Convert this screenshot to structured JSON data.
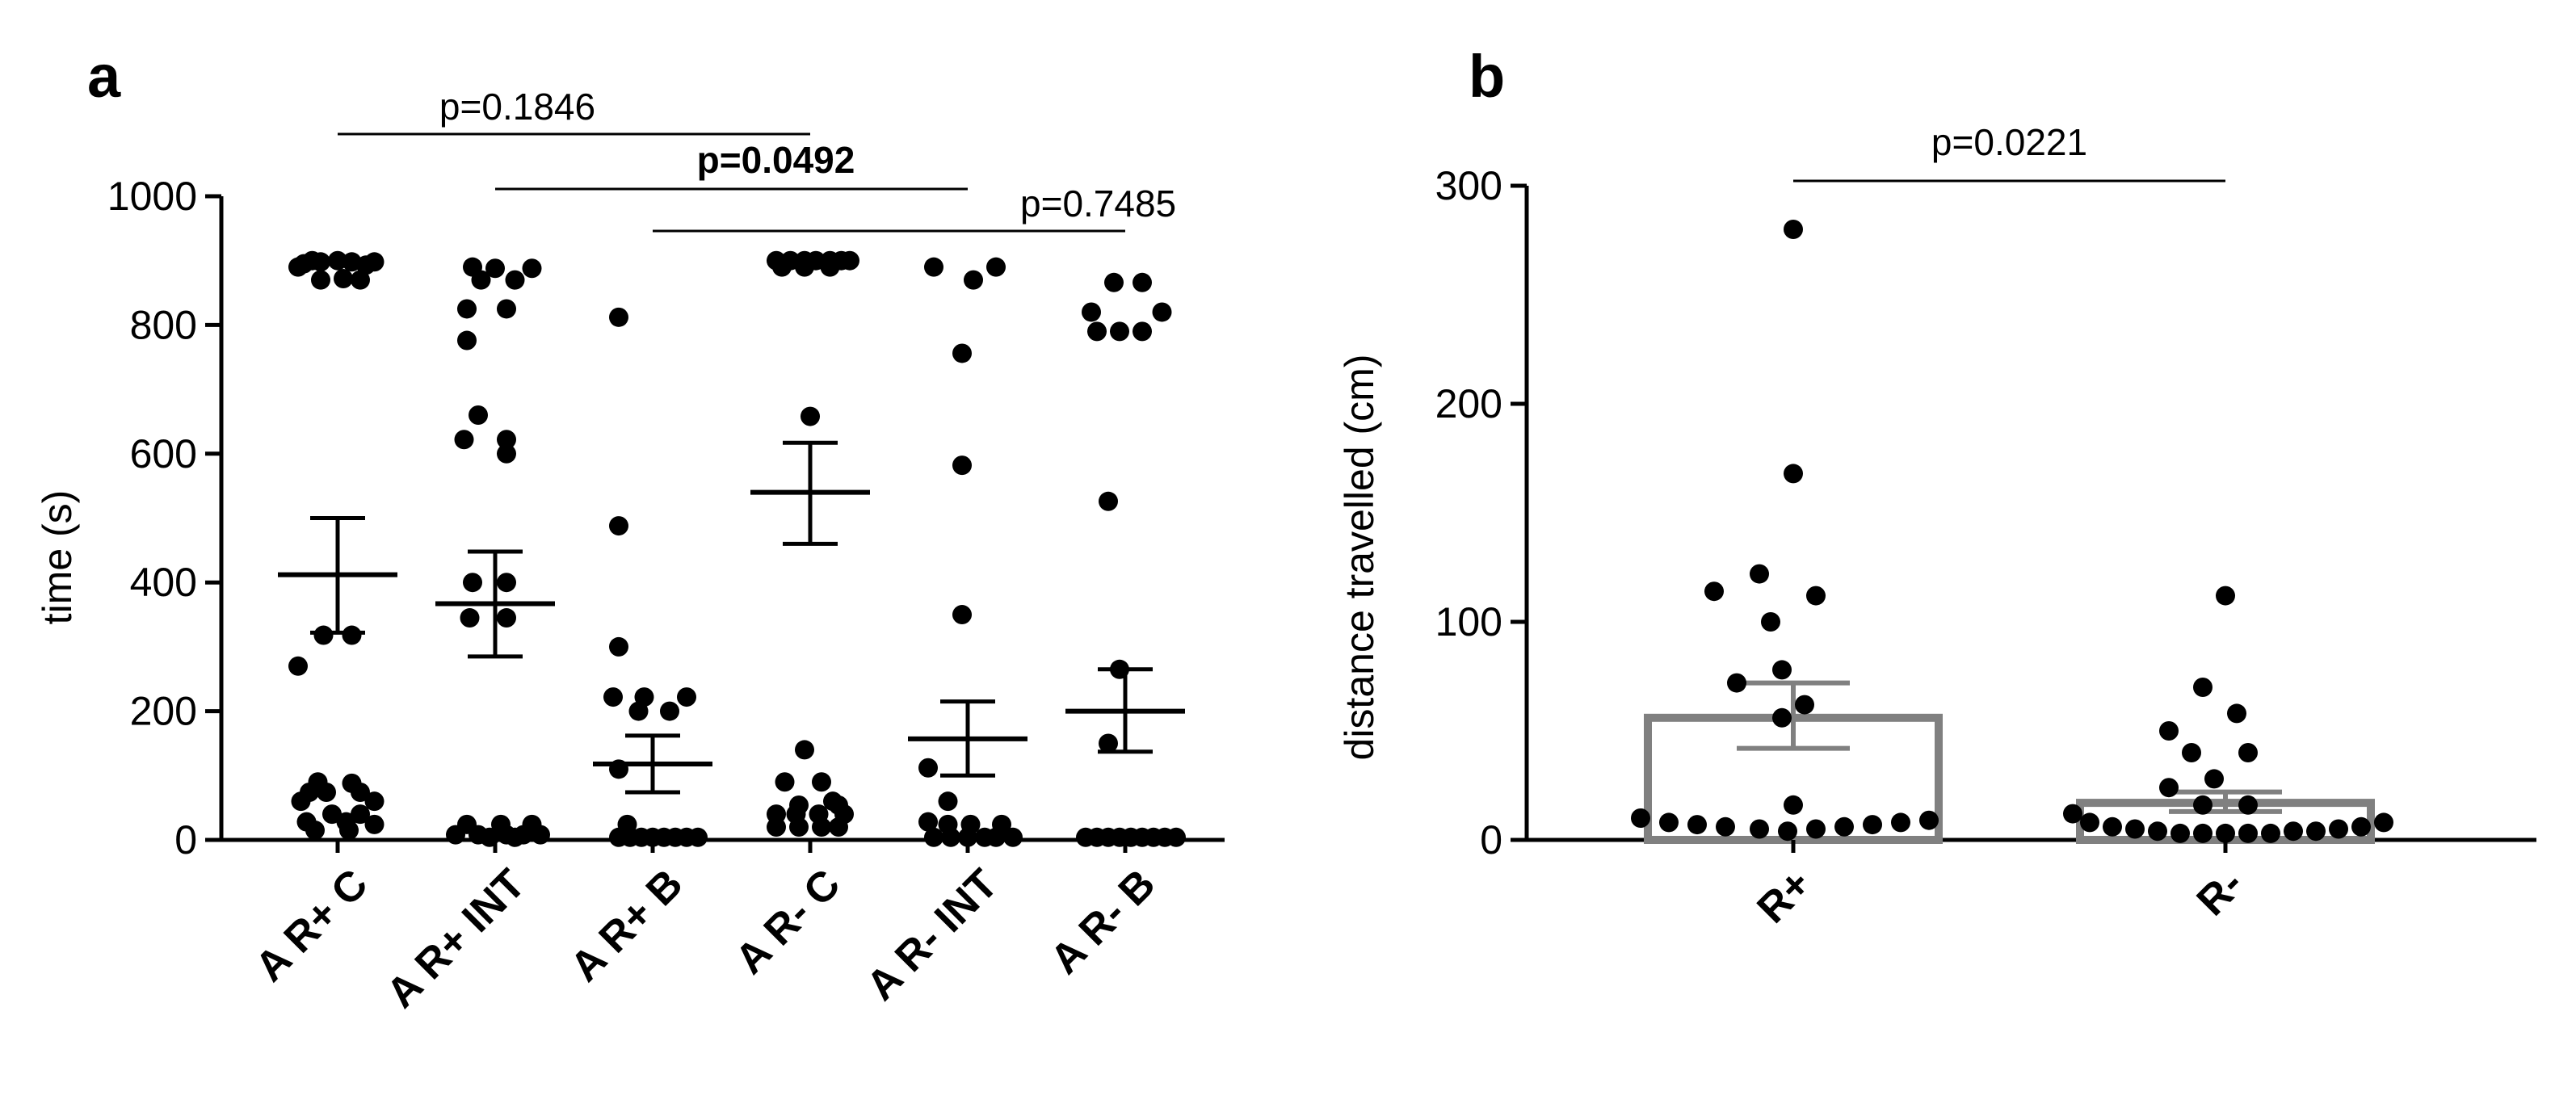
{
  "chart_data": [
    {
      "panel": "a",
      "type": "scatter",
      "ylabel": "time (s)",
      "ylim": [
        0,
        1000
      ],
      "yticks": [
        0,
        200,
        400,
        600,
        800,
        1000
      ],
      "categories": [
        "A R+ C",
        "A R+ INT",
        "A R+ B",
        "A R- C",
        "A R- INT",
        "A R- B"
      ],
      "series": [
        {
          "name": "A R+ C",
          "mean": 412,
          "sem_low": 322,
          "sem_high": 500,
          "points": [
            [
              0,
              900
            ],
            [
              -9,
              900
            ],
            [
              -6,
              898
            ],
            [
              5,
              898
            ],
            [
              13,
              898
            ],
            [
              -12,
              895
            ],
            [
              10,
              893
            ],
            [
              -14,
              890
            ],
            [
              2,
              872
            ],
            [
              -6,
              870
            ],
            [
              8,
              870
            ],
            [
              -5,
              318
            ],
            [
              5,
              318
            ],
            [
              -14,
              270
            ],
            [
              -7,
              90
            ],
            [
              5,
              88
            ],
            [
              -10,
              74
            ],
            [
              -4,
              74
            ],
            [
              8,
              74
            ],
            [
              -13,
              60
            ],
            [
              13,
              60
            ],
            [
              -2,
              40
            ],
            [
              8,
              40
            ],
            [
              -11,
              28
            ],
            [
              3,
              28
            ],
            [
              13,
              24
            ],
            [
              -8,
              15
            ],
            [
              4,
              15
            ]
          ]
        },
        {
          "name": "A R+ INT",
          "mean": 367,
          "sem_low": 285,
          "sem_high": 448,
          "points": [
            [
              -8,
              890
            ],
            [
              0,
              888
            ],
            [
              13,
              888
            ],
            [
              -5,
              870
            ],
            [
              7,
              870
            ],
            [
              -10,
              825
            ],
            [
              4,
              825
            ],
            [
              -10,
              776
            ],
            [
              -6,
              660
            ],
            [
              -11,
              622
            ],
            [
              4,
              622
            ],
            [
              4,
              600
            ],
            [
              -8,
              400
            ],
            [
              4,
              400
            ],
            [
              -9,
              345
            ],
            [
              4,
              345
            ],
            [
              -10,
              24
            ],
            [
              2,
              24
            ],
            [
              13,
              24
            ],
            [
              -14,
              8
            ],
            [
              -6,
              8
            ],
            [
              4,
              8
            ],
            [
              10,
              8
            ],
            [
              16,
              8
            ],
            [
              -2,
              4
            ],
            [
              7,
              4
            ]
          ]
        },
        {
          "name": "A R+ B",
          "mean": 118,
          "sem_low": 74,
          "sem_high": 162,
          "points": [
            [
              -12,
              812
            ],
            [
              -12,
              488
            ],
            [
              -12,
              300
            ],
            [
              -14,
              222
            ],
            [
              -3,
              222
            ],
            [
              12,
              222
            ],
            [
              -5,
              200
            ],
            [
              6,
              200
            ],
            [
              -12,
              110
            ],
            [
              -9,
              24
            ],
            [
              -12,
              4
            ],
            [
              -8,
              4
            ],
            [
              -4,
              4
            ],
            [
              0,
              4
            ],
            [
              4,
              4
            ],
            [
              8,
              4
            ],
            [
              12,
              4
            ],
            [
              16,
              4
            ]
          ]
        },
        {
          "name": "A R- C",
          "mean": 540,
          "sem_low": 460,
          "sem_high": 617,
          "points": [
            [
              -12,
              900
            ],
            [
              -7,
              900
            ],
            [
              -2,
              900
            ],
            [
              2,
              900
            ],
            [
              7,
              900
            ],
            [
              11,
              900
            ],
            [
              14,
              900
            ],
            [
              -10,
              890
            ],
            [
              -2,
              890
            ],
            [
              7,
              890
            ],
            [
              0,
              658
            ],
            [
              -2,
              140
            ],
            [
              -9,
              90
            ],
            [
              4,
              90
            ],
            [
              8,
              60
            ],
            [
              -4,
              54
            ],
            [
              10,
              54
            ],
            [
              -12,
              40
            ],
            [
              -5,
              40
            ],
            [
              3,
              40
            ],
            [
              12,
              40
            ],
            [
              -12,
              20
            ],
            [
              -4,
              20
            ],
            [
              4,
              20
            ],
            [
              10,
              20
            ]
          ]
        },
        {
          "name": "A R- INT",
          "mean": 157,
          "sem_low": 100,
          "sem_high": 215,
          "points": [
            [
              -12,
              890
            ],
            [
              10,
              890
            ],
            [
              2,
              870
            ],
            [
              -2,
              756
            ],
            [
              -2,
              582
            ],
            [
              -2,
              350
            ],
            [
              -14,
              112
            ],
            [
              -7,
              60
            ],
            [
              -14,
              28
            ],
            [
              -7,
              24
            ],
            [
              1,
              24
            ],
            [
              12,
              24
            ],
            [
              -12,
              4
            ],
            [
              -6,
              4
            ],
            [
              0,
              4
            ],
            [
              6,
              4
            ],
            [
              10,
              4
            ],
            [
              16,
              4
            ]
          ]
        },
        {
          "name": "A R- B",
          "mean": 200,
          "sem_low": 137,
          "sem_high": 265,
          "points": [
            [
              -4,
              866
            ],
            [
              6,
              866
            ],
            [
              -12,
              820
            ],
            [
              13,
              820
            ],
            [
              -10,
              790
            ],
            [
              -2,
              790
            ],
            [
              6,
              790
            ],
            [
              -6,
              526
            ],
            [
              -2,
              265
            ],
            [
              -6,
              150
            ],
            [
              -14,
              4
            ],
            [
              -10,
              4
            ],
            [
              -6,
              4
            ],
            [
              -2,
              4
            ],
            [
              2,
              4
            ],
            [
              6,
              4
            ],
            [
              10,
              4
            ],
            [
              14,
              4
            ],
            [
              18,
              4
            ]
          ]
        }
      ],
      "comparisons": [
        {
          "from": "A R+ C",
          "to": "A R- C",
          "label": "p=0.1846",
          "bold": false
        },
        {
          "from": "A R+ INT",
          "to": "A R- INT",
          "label": "p=0.0492",
          "bold": true
        },
        {
          "from": "A R+ B",
          "to": "A R- B",
          "label": "p=0.7485",
          "bold": false
        }
      ]
    },
    {
      "panel": "b",
      "type": "bar",
      "ylabel": "distance travelled (cm)",
      "ylim": [
        0,
        300
      ],
      "yticks": [
        0,
        100,
        200,
        300
      ],
      "categories": [
        "R+",
        "R-"
      ],
      "series": [
        {
          "name": "R+",
          "value": 56,
          "sem_low": 42,
          "sem_high": 72,
          "points": [
            [
              0,
              280
            ],
            [
              0,
              168
            ],
            [
              -6,
              122
            ],
            [
              -14,
              114
            ],
            [
              4,
              112
            ],
            [
              -4,
              100
            ],
            [
              -2,
              78
            ],
            [
              -10,
              72
            ],
            [
              -2,
              56
            ],
            [
              2,
              62
            ],
            [
              0,
              16
            ],
            [
              -27,
              10
            ],
            [
              -22,
              8
            ],
            [
              -17,
              7
            ],
            [
              -12,
              6
            ],
            [
              -6,
              5
            ],
            [
              -1,
              4
            ],
            [
              4,
              5
            ],
            [
              9,
              6
            ],
            [
              14,
              7
            ],
            [
              19,
              8
            ],
            [
              24,
              9
            ]
          ]
        },
        {
          "name": "R-",
          "value": 17,
          "sem_low": 13,
          "sem_high": 22,
          "points": [
            [
              0,
              112
            ],
            [
              -4,
              70
            ],
            [
              2,
              58
            ],
            [
              -10,
              50
            ],
            [
              -6,
              40
            ],
            [
              4,
              40
            ],
            [
              -2,
              28
            ],
            [
              -10,
              24
            ],
            [
              -4,
              16
            ],
            [
              4,
              16
            ],
            [
              -27,
              12
            ],
            [
              -24,
              8
            ],
            [
              -20,
              6
            ],
            [
              -16,
              5
            ],
            [
              -12,
              4
            ],
            [
              -8,
              3
            ],
            [
              -4,
              3
            ],
            [
              0,
              3
            ],
            [
              4,
              3
            ],
            [
              8,
              3
            ],
            [
              12,
              4
            ],
            [
              16,
              4
            ],
            [
              20,
              5
            ],
            [
              24,
              6
            ],
            [
              28,
              8
            ]
          ]
        }
      ],
      "comparisons": [
        {
          "from": "R+",
          "to": "R-",
          "label": "p=0.0221",
          "bold": false
        }
      ]
    }
  ]
}
